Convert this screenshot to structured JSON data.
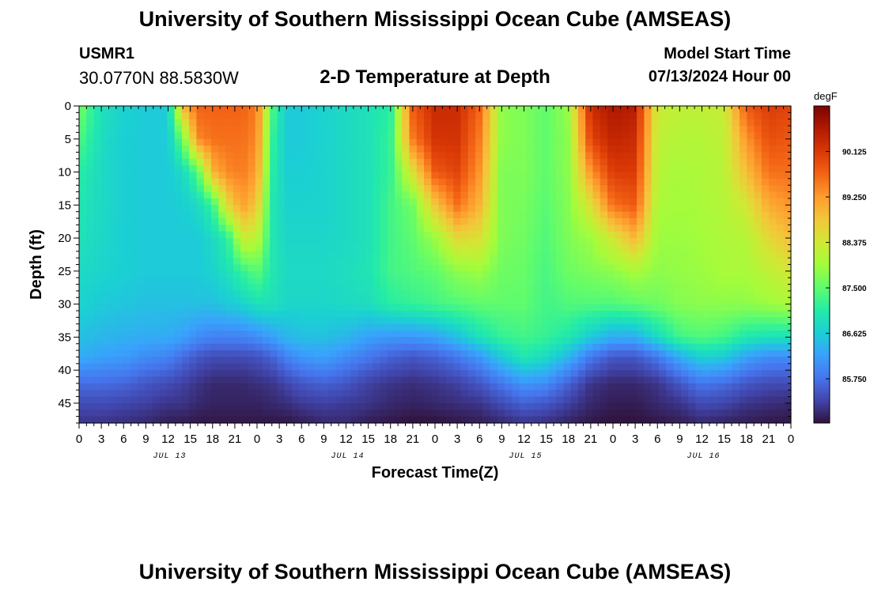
{
  "header": {
    "title": "University of Southern Mississippi Ocean Cube (AMSEAS)",
    "station_id": "USMR1",
    "station_coords": "30.0770N  88.5830W",
    "plot_title": "2-D Temperature at Depth",
    "model_start_label": "Model Start Time",
    "model_start_value": "07/13/2024 Hour 00"
  },
  "footer": {
    "title": "University of Southern Mississippi Ocean Cube (AMSEAS)"
  },
  "colors": {
    "colormap": [
      "#30123b",
      "#4145ab",
      "#4675ed",
      "#39a2fc",
      "#1bcfd4",
      "#24eca6",
      "#61fc6c",
      "#a4fc3b",
      "#d1e834",
      "#f3c63a",
      "#fe9b2d",
      "#f36315",
      "#d93806",
      "#b11901",
      "#7a0402"
    ]
  },
  "chart_data": {
    "type": "heatmap",
    "title": "2-D Temperature at Depth",
    "xlabel": "Forecast Time(Z)",
    "ylabel": "Depth (ft)",
    "units": "degF",
    "x_range_hours": [
      0,
      96
    ],
    "x_tick_step_hours": 3,
    "x_tick_labels": [
      "0",
      "3",
      "6",
      "9",
      "12",
      "15",
      "18",
      "21",
      "0",
      "3",
      "6",
      "9",
      "12",
      "15",
      "18",
      "21",
      "0",
      "3",
      "6",
      "9",
      "12",
      "15",
      "18",
      "21",
      "0",
      "3",
      "6",
      "9",
      "12",
      "15",
      "18",
      "21",
      "0"
    ],
    "x_day_labels": [
      {
        "hour": 12,
        "label": "JUL 13"
      },
      {
        "hour": 36,
        "label": "JUL 14"
      },
      {
        "hour": 60,
        "label": "JUL 15"
      },
      {
        "hour": 84,
        "label": "JUL 16"
      }
    ],
    "y_range_ft": [
      0,
      48
    ],
    "y_tick_values": [
      0,
      5,
      10,
      15,
      20,
      25,
      30,
      35,
      40,
      45
    ],
    "y_tick_labels": [
      "0",
      "5",
      "10",
      "15",
      "20",
      "25",
      "30",
      "35",
      "40",
      "45"
    ],
    "colorbar_range": [
      84.9,
      91.0
    ],
    "colorbar_ticks": [
      90.125,
      89.25,
      88.375,
      87.5,
      86.625,
      85.75
    ],
    "colorbar_tick_labels": [
      "90.125",
      "89.250",
      "88.375",
      "87.500",
      "86.625",
      "85.750"
    ],
    "grid_time_hours": [
      0,
      2,
      3,
      6,
      9,
      12,
      14,
      16,
      18,
      20,
      22,
      24,
      26,
      28,
      30,
      33,
      36,
      39,
      42,
      45,
      48,
      51,
      54,
      57,
      60,
      63,
      66,
      69,
      72,
      75,
      78,
      81,
      84,
      87,
      90,
      93,
      96
    ],
    "grid_depth_ft": [
      0,
      5,
      10,
      15,
      20,
      25,
      30,
      35,
      38,
      42,
      45,
      48
    ],
    "temperature_degF": [
      [
        87.7,
        87.4,
        87.1,
        87.0,
        86.95,
        86.8,
        86.7,
        86.5,
        86.3,
        85.7,
        85.4,
        85.2
      ],
      [
        87.1,
        87.0,
        86.9,
        86.85,
        86.8,
        86.75,
        86.65,
        86.45,
        86.25,
        85.7,
        85.4,
        85.2
      ],
      [
        86.9,
        86.85,
        86.8,
        86.8,
        86.78,
        86.72,
        86.6,
        86.4,
        86.2,
        85.7,
        85.4,
        85.2
      ],
      [
        86.7,
        86.65,
        86.65,
        86.65,
        86.65,
        86.65,
        86.55,
        86.35,
        86.15,
        85.65,
        85.35,
        85.15
      ],
      [
        86.6,
        86.6,
        86.6,
        86.6,
        86.6,
        86.6,
        86.5,
        86.3,
        86.0,
        85.5,
        85.3,
        85.1
      ],
      [
        86.6,
        86.6,
        86.6,
        86.6,
        86.6,
        86.6,
        86.5,
        86.3,
        85.9,
        85.4,
        85.2,
        85.0
      ],
      [
        89.0,
        87.6,
        86.8,
        86.65,
        86.6,
        86.6,
        86.5,
        86.2,
        85.7,
        85.3,
        85.2,
        85.0
      ],
      [
        89.7,
        89.4,
        87.4,
        86.8,
        86.6,
        86.6,
        86.5,
        86.0,
        85.5,
        85.2,
        85.1,
        84.95
      ],
      [
        89.7,
        89.6,
        89.0,
        87.2,
        86.8,
        86.7,
        86.5,
        85.9,
        85.4,
        85.1,
        85.05,
        84.95
      ],
      [
        89.7,
        89.6,
        89.4,
        88.6,
        87.1,
        86.9,
        86.6,
        85.9,
        85.4,
        85.1,
        85.05,
        84.95
      ],
      [
        89.7,
        89.6,
        89.5,
        89.2,
        88.3,
        87.2,
        86.7,
        85.9,
        85.4,
        85.1,
        85.05,
        84.95
      ],
      [
        89.5,
        89.4,
        89.2,
        88.8,
        88.2,
        87.5,
        86.9,
        86.0,
        85.45,
        85.15,
        85.05,
        84.95
      ],
      [
        87.4,
        87.2,
        87.1,
        87.0,
        87.0,
        87.0,
        86.9,
        86.2,
        85.6,
        85.2,
        85.1,
        84.95
      ],
      [
        86.6,
        86.6,
        86.65,
        86.7,
        86.75,
        86.8,
        86.75,
        86.4,
        85.9,
        85.35,
        85.15,
        84.95
      ],
      [
        86.6,
        86.6,
        86.65,
        86.7,
        86.75,
        86.8,
        86.75,
        86.5,
        86.1,
        85.5,
        85.25,
        85.0
      ],
      [
        86.7,
        86.7,
        86.7,
        86.7,
        86.75,
        86.8,
        86.75,
        86.5,
        86.2,
        85.6,
        85.3,
        85.1
      ],
      [
        86.8,
        86.8,
        86.8,
        86.8,
        86.8,
        86.85,
        86.8,
        86.4,
        86.0,
        85.5,
        85.25,
        85.1
      ],
      [
        86.9,
        86.9,
        86.9,
        86.9,
        86.9,
        86.95,
        86.85,
        86.2,
        85.8,
        85.3,
        85.2,
        85.0
      ],
      [
        87.1,
        87.2,
        87.2,
        87.3,
        87.3,
        87.3,
        87.1,
        86.1,
        85.6,
        85.2,
        85.1,
        84.95
      ],
      [
        89.8,
        89.5,
        88.5,
        87.6,
        87.5,
        87.4,
        87.2,
        86.1,
        85.5,
        85.15,
        85.05,
        84.9
      ],
      [
        90.3,
        90.2,
        89.8,
        88.8,
        87.9,
        87.5,
        87.3,
        86.2,
        85.6,
        85.2,
        85.1,
        84.9
      ],
      [
        90.3,
        90.2,
        90.0,
        89.6,
        88.6,
        87.8,
        87.4,
        86.5,
        85.8,
        85.3,
        85.15,
        84.95
      ],
      [
        89.7,
        89.5,
        89.3,
        89.0,
        88.5,
        87.9,
        87.5,
        86.9,
        86.1,
        85.5,
        85.2,
        85.0
      ],
      [
        87.8,
        87.8,
        87.7,
        87.7,
        87.7,
        87.6,
        87.5,
        87.2,
        86.6,
        85.8,
        85.4,
        85.1
      ],
      [
        87.7,
        87.7,
        87.7,
        87.65,
        87.6,
        87.55,
        87.5,
        87.3,
        87.0,
        86.1,
        85.6,
        85.2
      ],
      [
        87.5,
        87.5,
        87.5,
        87.45,
        87.4,
        87.35,
        87.3,
        87.2,
        86.8,
        86.0,
        85.5,
        85.15
      ],
      [
        87.9,
        87.8,
        87.8,
        87.75,
        87.7,
        87.6,
        87.4,
        87.0,
        86.4,
        85.6,
        85.3,
        85.05
      ],
      [
        90.3,
        90.0,
        89.3,
        88.5,
        87.9,
        87.7,
        87.4,
        86.6,
        85.8,
        85.2,
        85.1,
        84.95
      ],
      [
        90.6,
        90.4,
        90.1,
        89.6,
        88.4,
        87.8,
        87.4,
        86.3,
        85.5,
        85.1,
        85.0,
        84.9
      ],
      [
        90.5,
        90.3,
        90.1,
        89.8,
        89.0,
        88.0,
        87.5,
        86.3,
        85.5,
        85.1,
        85.0,
        84.9
      ],
      [
        88.3,
        88.2,
        88.1,
        88.0,
        87.9,
        87.8,
        87.6,
        86.8,
        85.8,
        85.2,
        85.1,
        84.95
      ],
      [
        88.2,
        88.1,
        88.0,
        87.95,
        87.9,
        87.85,
        87.75,
        87.3,
        86.3,
        85.5,
        85.2,
        85.0
      ],
      [
        88.2,
        88.1,
        88.05,
        88.0,
        87.95,
        87.9,
        87.8,
        87.4,
        86.7,
        85.8,
        85.4,
        85.1
      ],
      [
        88.3,
        88.2,
        88.15,
        88.1,
        88.05,
        88.0,
        87.8,
        87.3,
        86.6,
        85.7,
        85.35,
        85.05
      ],
      [
        89.8,
        89.3,
        88.9,
        88.4,
        88.1,
        88.0,
        87.8,
        87.0,
        86.2,
        85.5,
        85.2,
        85.0
      ],
      [
        90.1,
        89.9,
        89.6,
        89.1,
        88.6,
        88.2,
        87.9,
        86.9,
        86.0,
        85.4,
        85.15,
        84.95
      ],
      [
        90.0,
        89.8,
        89.6,
        89.3,
        88.9,
        88.4,
        88.0,
        86.9,
        86.0,
        85.4,
        85.1,
        84.95
      ]
    ]
  }
}
